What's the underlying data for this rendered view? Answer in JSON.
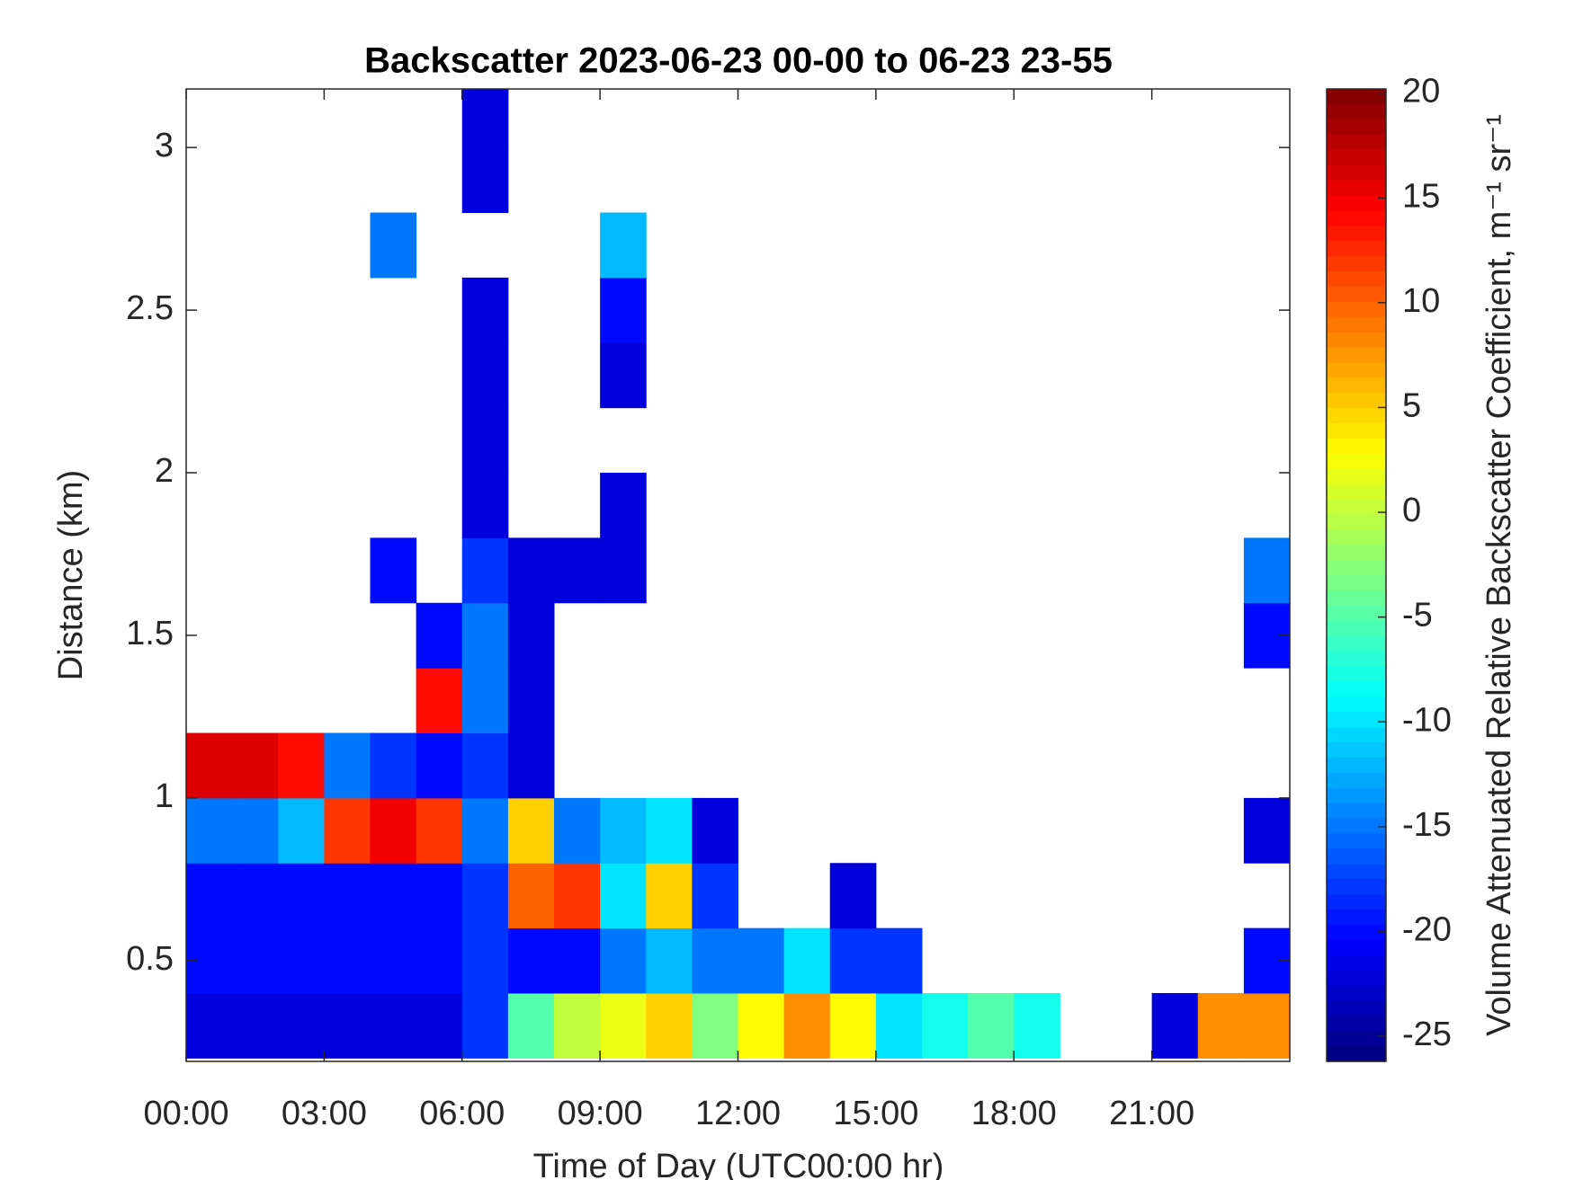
{
  "chart_data": {
    "type": "heatmap",
    "title": "Backscatter 2023-06-23 00-00 to 06-23 23-55",
    "x_label": "Time of Day (UTC00:00 hr)",
    "y_label": "Distance (km)",
    "colorbar_label": "Volume Attenuated Relative Backscatter Coefficient, m⁻¹ sr⁻¹",
    "colormap": "jet",
    "x_bins": [
      0,
      1,
      2,
      3,
      4,
      5,
      6,
      7,
      8,
      9,
      10,
      11,
      12,
      13,
      14,
      15,
      16,
      17,
      18,
      19,
      20,
      21,
      22,
      23,
      24
    ],
    "y_bins": [
      0.2,
      0.4,
      0.6,
      0.8,
      1.0,
      1.2,
      1.4,
      1.6,
      1.8,
      2.0,
      2.2,
      2.4,
      2.6,
      2.8,
      3.0,
      3.2
    ],
    "z": [
      [
        -22,
        -22,
        -22,
        -22,
        -22,
        -22,
        -18,
        -5,
        0,
        2,
        5,
        -3,
        3,
        8,
        3,
        -10,
        -8,
        -5,
        -8,
        null,
        null,
        -22,
        8,
        8
      ],
      [
        -20,
        -20,
        -20,
        -20,
        -20,
        -20,
        -18,
        -20,
        -20,
        -15,
        -12,
        -15,
        -15,
        -10,
        -18,
        -18,
        null,
        null,
        null,
        null,
        null,
        null,
        null,
        -20
      ],
      [
        -20,
        -20,
        -20,
        -20,
        -20,
        -20,
        -18,
        10,
        12,
        -10,
        5,
        -18,
        null,
        null,
        -22,
        null,
        null,
        null,
        null,
        null,
        null,
        null,
        null,
        null
      ],
      [
        -15,
        -15,
        -12,
        12,
        15,
        12,
        -15,
        5,
        -15,
        -12,
        -10,
        -22,
        null,
        null,
        null,
        null,
        null,
        null,
        null,
        null,
        null,
        null,
        null,
        -22
      ],
      [
        16,
        16,
        14,
        -15,
        -18,
        -20,
        -18,
        -22,
        null,
        null,
        null,
        null,
        null,
        null,
        null,
        null,
        null,
        null,
        null,
        null,
        null,
        null,
        null,
        null
      ],
      [
        null,
        null,
        null,
        null,
        null,
        14,
        -15,
        -22,
        null,
        null,
        null,
        null,
        null,
        null,
        null,
        null,
        null,
        null,
        null,
        null,
        null,
        null,
        null,
        null
      ],
      [
        null,
        null,
        null,
        null,
        null,
        -20,
        -15,
        -22,
        null,
        null,
        null,
        null,
        null,
        null,
        null,
        null,
        null,
        null,
        null,
        null,
        null,
        null,
        null,
        -20
      ],
      [
        null,
        null,
        null,
        null,
        -20,
        null,
        -18,
        -22,
        -22,
        -22,
        null,
        null,
        null,
        null,
        null,
        null,
        null,
        null,
        null,
        null,
        null,
        null,
        null,
        -15
      ],
      [
        null,
        null,
        null,
        null,
        null,
        null,
        -22,
        null,
        null,
        -22,
        null,
        null,
        null,
        null,
        null,
        null,
        null,
        null,
        null,
        null,
        null,
        null,
        null,
        null
      ],
      [
        null,
        null,
        null,
        null,
        null,
        null,
        -22,
        null,
        null,
        null,
        null,
        null,
        null,
        null,
        null,
        null,
        null,
        null,
        null,
        null,
        null,
        null,
        null,
        null
      ],
      [
        null,
        null,
        null,
        null,
        null,
        null,
        -22,
        null,
        null,
        -22,
        null,
        null,
        null,
        null,
        null,
        null,
        null,
        null,
        null,
        null,
        null,
        null,
        null,
        null
      ],
      [
        null,
        null,
        null,
        null,
        null,
        null,
        -22,
        null,
        null,
        -20,
        null,
        null,
        null,
        null,
        null,
        null,
        null,
        null,
        null,
        null,
        null,
        null,
        null,
        null
      ],
      [
        null,
        null,
        null,
        null,
        -15,
        null,
        null,
        null,
        null,
        -12,
        null,
        null,
        null,
        null,
        null,
        null,
        null,
        null,
        null,
        null,
        null,
        null,
        null,
        null
      ],
      [
        null,
        null,
        null,
        null,
        null,
        null,
        -22,
        null,
        null,
        null,
        null,
        null,
        null,
        null,
        null,
        null,
        null,
        null,
        null,
        null,
        null,
        null,
        null,
        null
      ],
      [
        null,
        null,
        null,
        null,
        null,
        null,
        -22,
        null,
        null,
        null,
        null,
        null,
        null,
        null,
        null,
        null,
        null,
        null,
        null,
        null,
        null,
        null,
        null,
        null
      ]
    ],
    "xlim": [
      0,
      24
    ],
    "ylim": [
      0.19,
      3.18
    ],
    "clim": [
      -26.2,
      20.2
    ],
    "xticks": [
      {
        "value": 0,
        "label": "00:00"
      },
      {
        "value": 3,
        "label": "03:00"
      },
      {
        "value": 6,
        "label": "06:00"
      },
      {
        "value": 9,
        "label": "09:00"
      },
      {
        "value": 12,
        "label": "12:00"
      },
      {
        "value": 15,
        "label": "15:00"
      },
      {
        "value": 18,
        "label": "18:00"
      },
      {
        "value": 21,
        "label": "21:00"
      }
    ],
    "yticks": [
      0.5,
      1,
      1.5,
      2,
      2.5,
      3
    ],
    "cticks": [
      -25,
      -20,
      -15,
      -10,
      -5,
      0,
      5,
      10,
      15,
      20
    ]
  }
}
